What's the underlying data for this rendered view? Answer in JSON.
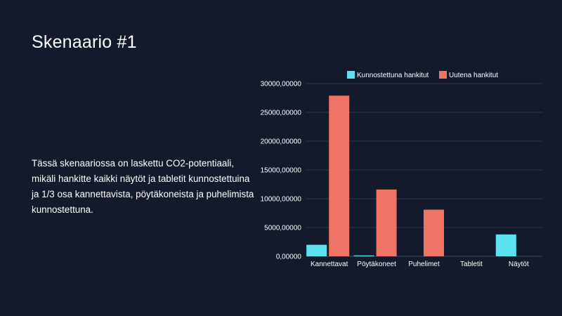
{
  "slide": {
    "title": "Skenaario #1",
    "body": "Tässä skenaariossa on laskettu CO2-potentiaali, mikäli hankitte kaikki näytöt ja tabletit kunnostettuina ja 1/3 osa kannettavista, pöytäkoneista ja puhelimista kunnostettuna."
  },
  "colors": {
    "background": "#131a2c",
    "series_refurbished": "#5ce1f2",
    "series_new": "#f07465",
    "grid": "#2c3550"
  },
  "chart_data": {
    "type": "bar",
    "categories": [
      "Kannettavat",
      "Pöytäkoneet",
      "Puhelimet",
      "Tabletit",
      "Näytöt"
    ],
    "series": [
      {
        "name": "Kunnostettuna hankitut",
        "values": [
          2000,
          150,
          0,
          0,
          3800
        ]
      },
      {
        "name": "Uutena hankitut",
        "values": [
          27900,
          11600,
          8100,
          0,
          0
        ]
      }
    ],
    "ylim": [
      0,
      30000
    ],
    "yticks": [
      0,
      5000,
      10000,
      15000,
      20000,
      25000,
      30000
    ],
    "ytick_labels": [
      "0,00000",
      "5000,00000",
      "10000,00000",
      "15000,00000",
      "20000,00000",
      "25000,00000",
      "30000,00000"
    ],
    "grid": true,
    "legend_position": "top"
  }
}
